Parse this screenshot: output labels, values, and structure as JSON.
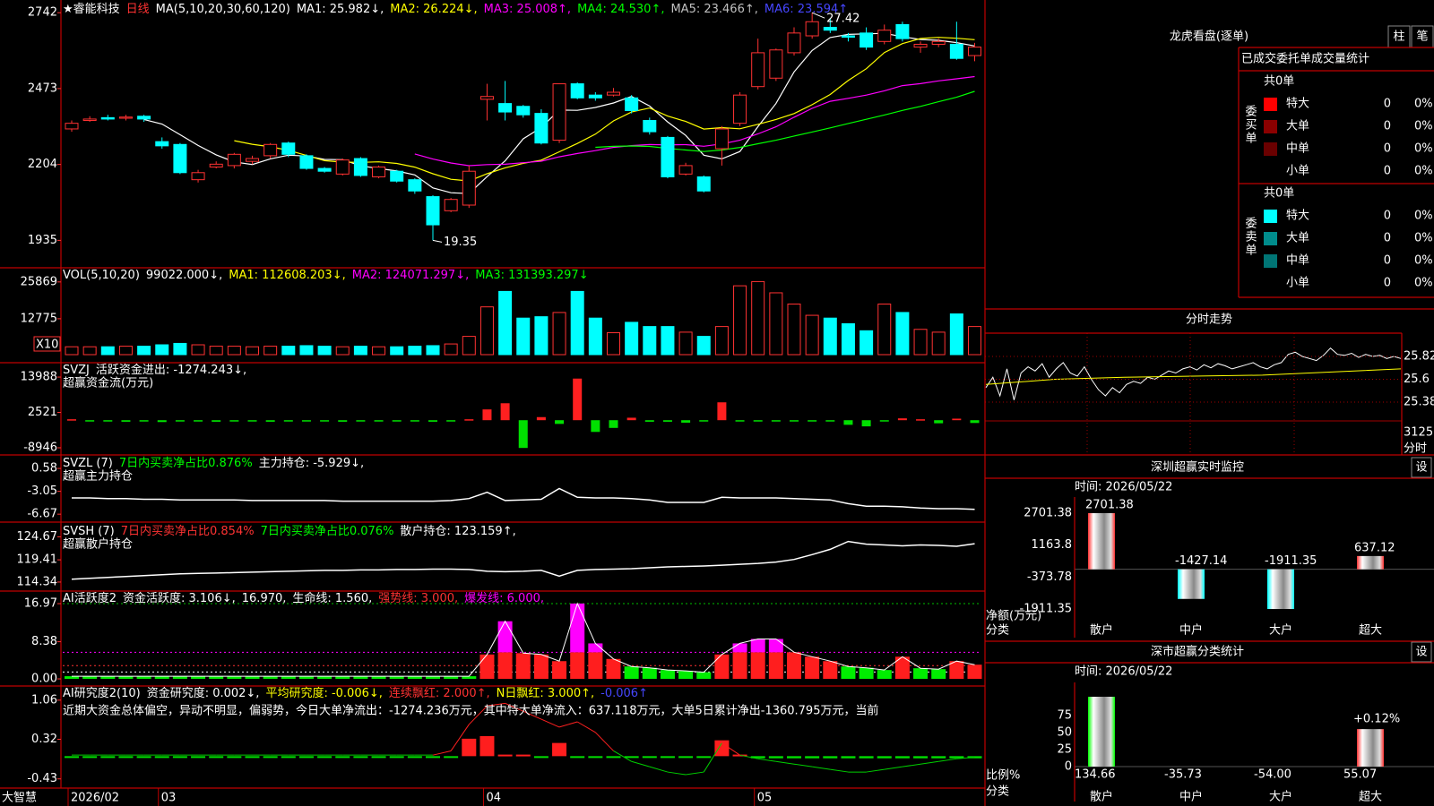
{
  "app": "大智慧",
  "main": {
    "header": [
      {
        "text": "★睿能科技",
        "color": "#ffffff"
      },
      {
        "text": "日线",
        "color": "#ff3232"
      },
      {
        "text": "MA(5,10,20,30,60,120)",
        "color": "#ffffff"
      },
      {
        "text": "MA1: 25.982↓,",
        "color": "#ffffff"
      },
      {
        "text": "MA2: 26.224↓,",
        "color": "#ffff00"
      },
      {
        "text": "MA3: 25.008↑,",
        "color": "#ff00ff"
      },
      {
        "text": "MA4: 24.530↑,",
        "color": "#00ff00"
      },
      {
        "text": "MA5: 23.466↑,",
        "color": "#c0c0c0"
      },
      {
        "text": "MA6: 23.594↑",
        "color": "#4646ff"
      }
    ],
    "ma_periods": [
      5,
      10,
      20,
      30
    ],
    "ma_colors": [
      "#ffffff",
      "#ffff00",
      "#ff00ff",
      "#00ff00"
    ],
    "candles": {
      "open": [
        2330,
        2360,
        2370,
        2368,
        2375,
        2285,
        2275,
        2150,
        2195,
        2200,
        2215,
        2235,
        2280,
        2235,
        2190,
        2170,
        2225,
        2160,
        2180,
        2150,
        2090,
        2040,
        2060,
        2435,
        2420,
        2410,
        2385,
        2290,
        2490,
        2450,
        2450,
        2440,
        2360,
        2300,
        2170,
        2160,
        2260,
        2350,
        2480,
        2510,
        2600,
        2660,
        2690,
        2660,
        2670,
        2640,
        2700,
        2620,
        2630,
        2630,
        2590
      ],
      "close": [
        2350,
        2365,
        2365,
        2372,
        2365,
        2270,
        2175,
        2175,
        2205,
        2240,
        2225,
        2275,
        2240,
        2190,
        2180,
        2220,
        2165,
        2195,
        2145,
        2110,
        1990,
        2080,
        2180,
        2445,
        2390,
        2380,
        2280,
        2490,
        2440,
        2440,
        2460,
        2395,
        2320,
        2160,
        2200,
        2110,
        2330,
        2450,
        2600,
        2610,
        2670,
        2710,
        2680,
        2655,
        2620,
        2680,
        2650,
        2630,
        2640,
        2580,
        2620
      ],
      "high": [
        2360,
        2375,
        2380,
        2380,
        2380,
        2300,
        2280,
        2185,
        2215,
        2245,
        2235,
        2280,
        2285,
        2240,
        2195,
        2225,
        2230,
        2200,
        2185,
        2155,
        2095,
        2085,
        2200,
        2490,
        2500,
        2415,
        2400,
        2490,
        2495,
        2460,
        2475,
        2450,
        2370,
        2305,
        2210,
        2165,
        2340,
        2460,
        2650,
        2615,
        2690,
        2742,
        2720,
        2670,
        2690,
        2700,
        2710,
        2640,
        2650,
        2710,
        2635
      ],
      "low": [
        2320,
        2355,
        2360,
        2360,
        2355,
        2260,
        2170,
        2140,
        2190,
        2190,
        2205,
        2225,
        2230,
        2185,
        2175,
        2165,
        2160,
        2155,
        2140,
        2100,
        1935,
        2035,
        2050,
        2360,
        2360,
        2370,
        2275,
        2280,
        2435,
        2430,
        2445,
        2385,
        2310,
        2155,
        2165,
        2105,
        2200,
        2340,
        2470,
        2500,
        2590,
        2650,
        2670,
        2640,
        2610,
        2630,
        2640,
        2600,
        2620,
        2575,
        2570
      ]
    },
    "categories": [
      "2026/02",
      null,
      null,
      null,
      null,
      "03",
      null,
      null,
      null,
      null,
      null,
      null,
      null,
      null,
      null,
      null,
      null,
      null,
      null,
      null,
      null,
      null,
      null,
      "04",
      null,
      null,
      null,
      null,
      null,
      null,
      null,
      null,
      null,
      null,
      null,
      null,
      null,
      null,
      "05",
      null,
      null,
      null,
      null,
      null,
      null,
      null,
      null,
      null,
      null,
      null,
      null
    ],
    "ylim": [
      1841,
      2787
    ],
    "yticks": [
      1935,
      2204,
      2473,
      2742
    ],
    "high_label": "27.42",
    "low_label": "19.35",
    "up_color": "#ff3232",
    "down_color": "#00ffff"
  },
  "vol": {
    "header": [
      {
        "text": "VOL(5,10,20)",
        "color": "#ffffff"
      },
      {
        "text": "99022.000↓,",
        "color": "#ffffff"
      },
      {
        "text": "MA1: 112608.203↓,",
        "color": "#ffff00"
      },
      {
        "text": "MA2: 124071.297↓,",
        "color": "#ff00ff"
      },
      {
        "text": "MA3: 131393.297↓",
        "color": "#00ff00"
      }
    ],
    "values": [
      2800,
      2800,
      2800,
      3000,
      3000,
      3500,
      4000,
      3500,
      3000,
      3000,
      2800,
      3000,
      3000,
      3200,
      3000,
      2800,
      3000,
      2800,
      2800,
      3000,
      3200,
      3800,
      6500,
      17000,
      22500,
      13000,
      13500,
      15000,
      22500,
      13000,
      7800,
      11500,
      10000,
      10000,
      8000,
      6500,
      10000,
      24500,
      26000,
      22000,
      18000,
      14000,
      13000,
      11000,
      8500,
      18000,
      15000,
      9000,
      8000,
      14500,
      10000
    ],
    "ylim": [
      0,
      29000
    ],
    "yticks": [
      12775,
      25869
    ],
    "scale_label": "X10"
  },
  "svzj": {
    "header": [
      {
        "text": "SVZJ",
        "color": "#ffffff"
      },
      {
        "text": "活跃资金进出: -1274.243↓,",
        "color": "#ffffff"
      }
    ],
    "subtitle": "超赢资金流(万元)",
    "values": [
      300,
      -400,
      -300,
      -500,
      -400,
      -600,
      -400,
      -300,
      -500,
      -400,
      -300,
      -500,
      -400,
      -300,
      -400,
      -500,
      -300,
      -400,
      -300,
      -400,
      -500,
      -300,
      300,
      3500,
      5500,
      -9000,
      1000,
      -1200,
      13500,
      -3800,
      -2500,
      800,
      -500,
      -500,
      -800,
      -300,
      5800,
      -400,
      -300,
      -300,
      -400,
      -300,
      -300,
      -1500,
      -2000,
      -400,
      600,
      300,
      -1000,
      500,
      -900
    ],
    "ylim": [
      -10400,
      17200
    ],
    "yticks": [
      -8946,
      2521,
      13988
    ]
  },
  "svzl": {
    "header": [
      {
        "text": "SVZL (7)",
        "color": "#ffffff"
      },
      {
        "text": "7日内买卖净占比0.876%",
        "color": "#00ff00"
      },
      {
        "text": "主力持仓: -5.929↓,",
        "color": "#ffffff"
      }
    ],
    "subtitle": "超赢主力持仓",
    "values": [
      -4.1,
      -4.1,
      -4.2,
      -4.2,
      -4.3,
      -4.3,
      -4.4,
      -4.4,
      -4.4,
      -4.4,
      -4.5,
      -4.5,
      -4.5,
      -4.5,
      -4.5,
      -4.6,
      -4.6,
      -4.6,
      -4.6,
      -4.6,
      -4.6,
      -4.5,
      -4.2,
      -3.2,
      -4.5,
      -4.4,
      -4.3,
      -2.6,
      -4.0,
      -4.1,
      -4.1,
      -4.2,
      -4.4,
      -4.8,
      -4.8,
      -4.8,
      -4.0,
      -4.1,
      -4.1,
      -4.1,
      -4.2,
      -4.3,
      -4.4,
      -5.0,
      -5.4,
      -5.4,
      -5.5,
      -5.7,
      -5.8,
      -5.8,
      -5.9
    ],
    "ylim": [
      -7.5,
      2.15
    ],
    "yticks": [
      -6.67,
      -3.05,
      0.58
    ]
  },
  "svsh": {
    "header": [
      {
        "text": "SVSH (7)",
        "color": "#ffffff"
      },
      {
        "text": "7日内买卖净占比0.854%",
        "color": "#ff3232"
      },
      {
        "text": "7日内买卖净占比0.076%",
        "color": "#00ff00"
      },
      {
        "text": "散户持仓: 123.159↑,",
        "color": "#ffffff"
      }
    ],
    "subtitle": "超赢散户持仓",
    "values": [
      115.0,
      115.2,
      115.4,
      115.6,
      115.8,
      116.0,
      116.2,
      116.3,
      116.4,
      116.5,
      116.6,
      116.7,
      116.8,
      116.9,
      117.0,
      117.0,
      117.1,
      117.1,
      117.2,
      117.2,
      117.3,
      117.3,
      117.2,
      116.8,
      116.7,
      116.8,
      117.0,
      115.7,
      117.0,
      117.2,
      117.3,
      117.4,
      117.6,
      117.8,
      117.9,
      118.0,
      118.2,
      118.4,
      118.6,
      118.9,
      119.5,
      120.6,
      121.8,
      123.6,
      123.0,
      122.8,
      122.6,
      122.8,
      122.7,
      122.5,
      123.1
    ],
    "ylim": [
      113.1,
      127
    ],
    "yticks": [
      114.34,
      119.41,
      124.67
    ]
  },
  "ai": {
    "header": [
      {
        "text": "AI活跃度2",
        "color": "#ffffff"
      },
      {
        "text": "资金活跃度: 3.106↓,",
        "color": "#ffffff"
      },
      {
        "text": "16.970,",
        "color": "#ffffff"
      },
      {
        "text": "生命线: 1.560,",
        "color": "#ffffff"
      },
      {
        "text": "强势线: 3.000,",
        "color": "#ff3232"
      },
      {
        "text": "爆发线: 6.000,",
        "color": "#ff00ff"
      }
    ],
    "levels": {
      "top": 16.97,
      "burst": 6,
      "strong": 3,
      "life": 1.56
    },
    "values": [
      0.6,
      0.6,
      0.6,
      0.6,
      0.6,
      0.6,
      0.6,
      0.6,
      0.6,
      0.6,
      0.6,
      0.6,
      0.6,
      0.6,
      0.6,
      0.6,
      0.6,
      0.6,
      0.6,
      0.6,
      0.6,
      0.6,
      0.6,
      5.5,
      13,
      5.8,
      5.5,
      4,
      17,
      8,
      4.5,
      2.8,
      2.5,
      2,
      1.8,
      1.5,
      5.5,
      8,
      9,
      9,
      6,
      5,
      4,
      2.8,
      2.5,
      2,
      5,
      2.4,
      2.2,
      4,
      3.2
    ],
    "ylim": [
      -0.8,
      19
    ],
    "yticks": [
      {
        "value": 0,
        "label": "0.00"
      },
      8.38,
      16.97
    ]
  },
  "research": {
    "header": [
      {
        "text": "AI研究度2(10)",
        "color": "#ffffff"
      },
      {
        "text": "资金研究度: 0.002↓,",
        "color": "#ffffff"
      },
      {
        "text": "平均研究度: -0.006↓,",
        "color": "#ffff00"
      },
      {
        "text": "连续飘红: 2.000↑,",
        "color": "#ff3232"
      },
      {
        "text": "N日飘红: 3.000↑,",
        "color": "#ffff00"
      },
      {
        "text": "-0.006↑",
        "color": "#4646ff"
      }
    ],
    "text": "近期大资金总体偏空，异动不明显，偏弱势，今日大单净流出：-1274.236万元，其中特大单净流入：637.118万元，大单5日累计净出-1360.795万元，当前",
    "bars": [
      -0.03,
      -0.03,
      -0.03,
      -0.03,
      -0.03,
      -0.03,
      -0.03,
      -0.03,
      -0.03,
      -0.03,
      -0.03,
      -0.03,
      -0.03,
      -0.03,
      -0.03,
      -0.03,
      -0.03,
      -0.03,
      -0.03,
      -0.03,
      -0.03,
      -0.03,
      0.33,
      0.38,
      0.03,
      0.03,
      -0.03,
      0.25,
      -0.03,
      -0.03,
      -0.03,
      -0.03,
      -0.03,
      -0.03,
      -0.03,
      -0.03,
      0.3,
      0.03,
      -0.04,
      -0.04,
      -0.04,
      -0.04,
      -0.04,
      -0.04,
      -0.04,
      -0.04,
      -0.04,
      -0.04,
      -0.04,
      -0.04,
      -0.04
    ],
    "line": [
      0.02,
      0.02,
      0.02,
      0.02,
      0.02,
      0.02,
      0.02,
      0.02,
      0.02,
      0.02,
      0.02,
      0.02,
      0.02,
      0.02,
      0.02,
      0.02,
      0.02,
      0.02,
      0.02,
      0.02,
      0.02,
      0.1,
      0.6,
      0.95,
      1.0,
      0.85,
      0.7,
      0.55,
      0.65,
      0.45,
      0.1,
      -0.1,
      -0.2,
      -0.3,
      -0.35,
      -0.3,
      0.25,
      0.02,
      -0.05,
      -0.1,
      -0.15,
      -0.2,
      -0.25,
      -0.3,
      -0.3,
      -0.25,
      -0.2,
      -0.15,
      -0.1,
      -0.05,
      -0.02
    ],
    "ylim": [
      -0.57,
      1.26
    ],
    "yticks": [
      -0.43,
      0.32,
      1.06
    ]
  },
  "longhu": {
    "title": "龙虎看盘(逐单)",
    "buttons": [
      "柱",
      "笔"
    ],
    "subtitle": "已成交委托单成交量统计",
    "buy": {
      "label": "委买单",
      "total": "共0单",
      "rows": [
        {
          "name": "特大",
          "color": "#ff0000",
          "count": 0,
          "pct": "0%"
        },
        {
          "name": "大单",
          "color": "#8b0000",
          "count": 0,
          "pct": "0%"
        },
        {
          "name": "中单",
          "color": "#6a0000",
          "count": 0,
          "pct": "0%"
        },
        {
          "name": "小单",
          "color": null,
          "count": 0,
          "pct": "0%"
        }
      ]
    },
    "sell": {
      "label": "委卖单",
      "total": "共0单",
      "rows": [
        {
          "name": "特大",
          "color": "#00ffff",
          "count": 0,
          "pct": "0%"
        },
        {
          "name": "大单",
          "color": "#008b8b",
          "count": 0,
          "pct": "0%"
        },
        {
          "name": "中单",
          "color": "#007575",
          "count": 0,
          "pct": "0%"
        },
        {
          "name": "小单",
          "color": null,
          "count": 0,
          "pct": "0%"
        }
      ]
    }
  },
  "fenshi": {
    "title": "分时走势",
    "price": [
      25.52,
      25.62,
      25.44,
      25.7,
      25.4,
      25.66,
      25.72,
      25.68,
      25.75,
      25.62,
      25.7,
      25.76,
      25.66,
      25.63,
      25.72,
      25.6,
      25.5,
      25.44,
      25.52,
      25.47,
      25.55,
      25.58,
      25.56,
      25.62,
      25.6,
      25.64,
      25.68,
      25.66,
      25.7,
      25.72,
      25.69,
      25.74,
      25.71,
      25.75,
      25.73,
      25.7,
      25.72,
      25.74,
      25.76,
      25.72,
      25.7,
      25.74,
      25.76,
      25.84,
      25.86,
      25.82,
      25.8,
      25.78,
      25.83,
      25.9,
      25.84,
      25.83,
      25.85,
      25.81,
      25.84,
      25.82,
      25.83,
      25.8,
      25.82,
      25.8
    ],
    "avg": [
      25.55,
      25.6,
      25.62,
      25.63,
      25.64,
      25.67,
      25.7
    ],
    "ylim": [
      25.199,
      26.044
    ],
    "yticks": [
      25.82,
      25.6,
      25.38
    ],
    "grid": true,
    "volume_label": "3125",
    "unit": "分时"
  },
  "monitor": {
    "title": "深圳超赢实时监控",
    "button": "设",
    "time": "时间: 2026/05/22",
    "ylabel": "净额(万元)",
    "xlabel": "分类",
    "categories": [
      "散户",
      "中户",
      "大户",
      "超大"
    ],
    "category_colors": [
      "#ff3232",
      "#00ffff",
      "#00ffff",
      "#ff3232"
    ],
    "colors": [
      "#ff3232",
      "#00ffff",
      "#00ffff",
      "#ff3232"
    ],
    "values": [
      2701.38,
      -1427.14,
      -1911.35,
      637.12
    ],
    "ylim": [
      -2342,
      3477
    ],
    "yticks": [
      2701.38,
      1163.8,
      -373.78,
      -1911.35
    ]
  },
  "stats": {
    "title": "深市超赢分类统计",
    "button": "设",
    "time": "时间: 2026/05/22",
    "ylabel": "比例%",
    "xlabel": "分类",
    "categories": [
      "散户",
      "中户",
      "大户",
      "超大"
    ],
    "category_colors": [
      "#ff3232",
      "#00ffff",
      "#00ffff",
      "#ff3232"
    ],
    "colors": [
      "#00ff00",
      "#00ffff",
      "#00ffff",
      "#ff3232"
    ],
    "values": [
      134.66,
      -35.73,
      -54,
      55.07
    ],
    "value_labels": [
      "134.66",
      "-35.73",
      "-54.00",
      "55.07"
    ],
    "label_colors": [
      "#ffff00",
      "#3c50ff",
      "#00ffff",
      "#ffff00"
    ],
    "annotation": "+0.12%",
    "ylim": [
      0,
      102.6
    ],
    "yticks": [
      0,
      25,
      50,
      75
    ]
  }
}
